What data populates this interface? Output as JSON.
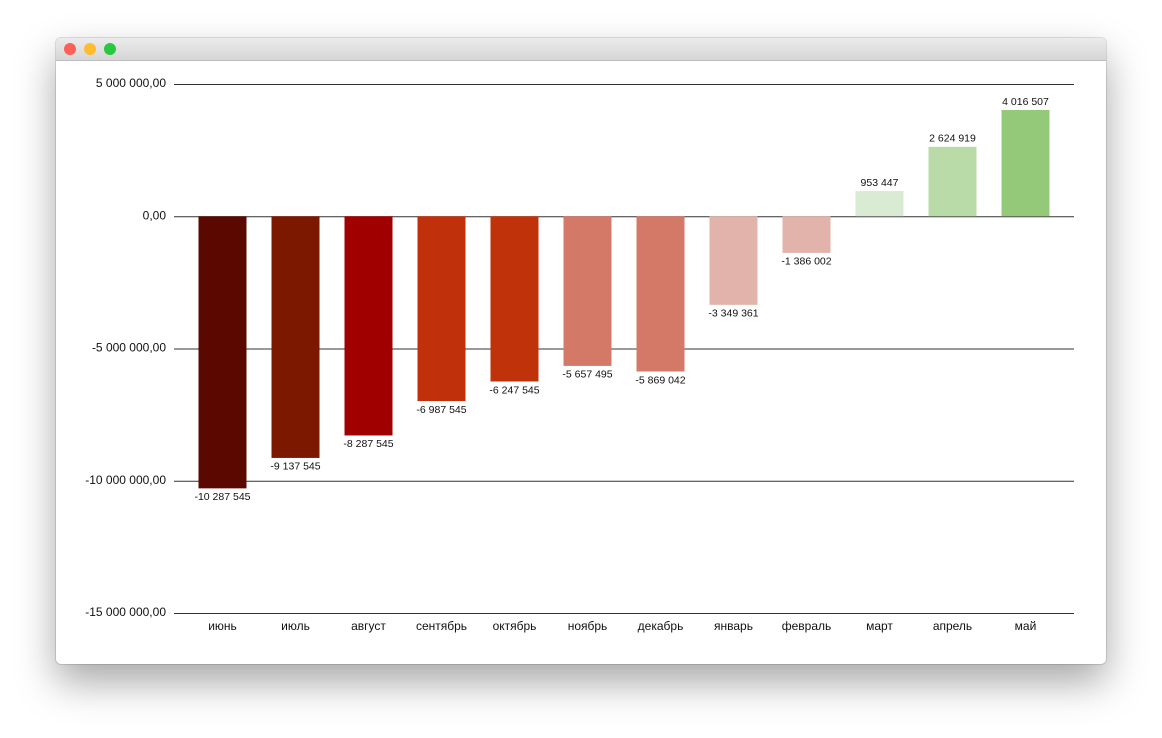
{
  "chart_data": {
    "type": "bar",
    "categories": [
      "июнь",
      "июль",
      "август",
      "сентябрь",
      "октябрь",
      "ноябрь",
      "декабрь",
      "январь",
      "февраль",
      "март",
      "апрель",
      "май"
    ],
    "values": [
      -10287545,
      -9137545,
      -8287545,
      -6987545,
      -6247545,
      -5657495,
      -5869042,
      -3349361,
      -1386002,
      953447,
      2624919,
      4016507
    ],
    "value_labels": [
      "-10 287 545",
      "-9 137 545",
      "-8 287 545",
      "-6 987 545",
      "-6 247 545",
      "-5 657 495",
      "-5 869 042",
      "-3 349 361",
      "-1 386 002",
      "953 447",
      "2 624 919",
      "4 016 507"
    ],
    "colors": [
      "#5a0800",
      "#7d1800",
      "#a00000",
      "#c0300a",
      "#c0330a",
      "#d47868",
      "#d47868",
      "#e2b3aa",
      "#e2b3aa",
      "#d9ebd3",
      "#b8dba8",
      "#94c97a"
    ],
    "ylim": [
      -15000000,
      5000000
    ],
    "yticks": [
      {
        "value": -15000000,
        "label": "-15 000 000,00"
      },
      {
        "value": -10000000,
        "label": "-10 000 000,00"
      },
      {
        "value": -5000000,
        "label": "-5 000 000,00"
      },
      {
        "value": 0,
        "label": "0,00"
      },
      {
        "value": 5000000,
        "label": "5 000 000,00"
      }
    ],
    "grid": true
  }
}
